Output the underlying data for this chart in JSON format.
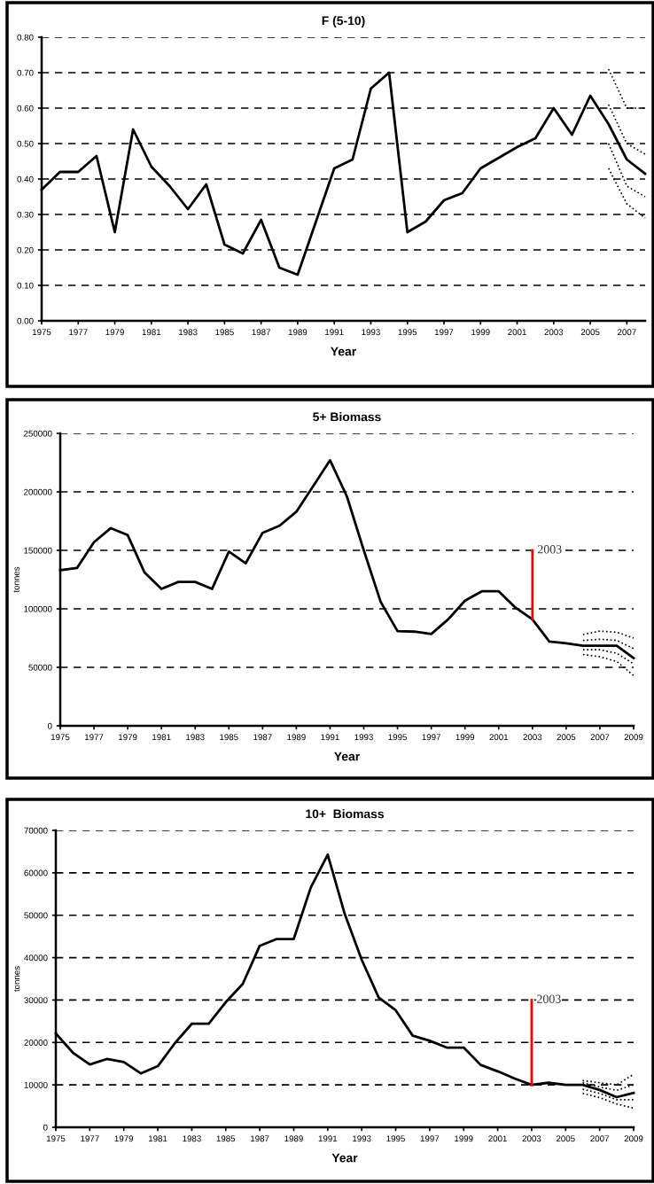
{
  "chart_data": [
    {
      "type": "line",
      "title": "F (5-10)",
      "xlabel": "Year",
      "grid": "y",
      "x": [
        1975,
        1976,
        1977,
        1978,
        1979,
        1980,
        1981,
        1982,
        1983,
        1984,
        1985,
        1986,
        1987,
        1988,
        1989,
        1990,
        1991,
        1992,
        1993,
        1994,
        1995,
        1996,
        1997,
        1998,
        1999,
        2000,
        2001,
        2002,
        2003,
        2004,
        2005,
        2006,
        2007,
        2008
      ],
      "xlim": [
        1975,
        2008
      ],
      "xticks": [
        1975,
        1977,
        1979,
        1981,
        1983,
        1985,
        1987,
        1989,
        1991,
        1993,
        1995,
        1997,
        1999,
        2001,
        2003,
        2005,
        2007
      ],
      "ylim": [
        0,
        0.8
      ],
      "yticks": [
        {
          "value": 0,
          "label": "0.00"
        },
        {
          "value": 0.1,
          "label": "0.10"
        },
        {
          "value": 0.2,
          "label": "0.20"
        },
        {
          "value": 0.3,
          "label": "0.30"
        },
        {
          "value": 0.4,
          "label": "0.40"
        },
        {
          "value": 0.5,
          "label": "0.50"
        },
        {
          "value": 0.6,
          "label": "0.60"
        },
        {
          "value": 0.7,
          "label": "0.70"
        },
        {
          "value": 0.8,
          "label": "0.80"
        }
      ],
      "series": [
        {
          "color": "#000000",
          "line_style": "solid",
          "values": [
            0.37,
            0.42,
            0.42,
            0.465,
            0.25,
            0.54,
            0.435,
            0.38,
            0.315,
            0.385,
            0.215,
            0.19,
            0.285,
            0.15,
            0.13,
            0.28,
            0.43,
            0.455,
            0.655,
            0.7,
            0.25,
            0.28,
            0.34,
            0.36,
            0.43,
            0.46,
            0.49,
            0.515,
            0.6,
            0.525,
            0.635,
            0.555,
            0.455,
            0.415
          ]
        },
        {
          "color": "#000000",
          "line_style": "dotted",
          "x": [
            2006,
            2007,
            2008
          ],
          "values": [
            0.71,
            0.6,
            0.6
          ]
        },
        {
          "color": "#000000",
          "line_style": "dotted",
          "x": [
            2006,
            2007,
            2008
          ],
          "values": [
            0.61,
            0.5,
            0.47
          ]
        },
        {
          "color": "#000000",
          "line_style": "dotted",
          "x": [
            2006,
            2007,
            2008
          ],
          "values": [
            0.5,
            0.38,
            0.35
          ]
        },
        {
          "color": "#000000",
          "line_style": "dotted",
          "x": [
            2006,
            2007,
            2008
          ],
          "values": [
            0.43,
            0.33,
            0.29
          ]
        }
      ]
    },
    {
      "type": "line",
      "title": "5+ Biomass",
      "xlabel": "Year",
      "ylabel": "tonnes",
      "grid": "y",
      "x": [
        1975,
        1976,
        1977,
        1978,
        1979,
        1980,
        1981,
        1982,
        1983,
        1984,
        1985,
        1986,
        1987,
        1988,
        1989,
        1990,
        1991,
        1992,
        1993,
        1994,
        1995,
        1996,
        1997,
        1998,
        1999,
        2000,
        2001,
        2002,
        2003,
        2004,
        2005,
        2006,
        2007,
        2008,
        2009
      ],
      "xlim": [
        1975,
        2009
      ],
      "xticks": [
        1975,
        1977,
        1979,
        1981,
        1983,
        1985,
        1987,
        1989,
        1991,
        1993,
        1995,
        1997,
        1999,
        2001,
        2003,
        2005,
        2007,
        2009
      ],
      "ylim": [
        0,
        250000
      ],
      "yticks": [
        0,
        50000,
        100000,
        150000,
        200000,
        250000
      ],
      "series": [
        {
          "color": "#000000",
          "line_style": "solid",
          "values": [
            133000,
            135000,
            157000,
            169000,
            163000,
            131000,
            117000,
            123000,
            123000,
            117000,
            149000,
            139000,
            165000,
            171000,
            183000,
            205000,
            227000,
            196000,
            150000,
            106000,
            81000,
            80500,
            78500,
            91000,
            107000,
            115000,
            115000,
            101000,
            91000,
            72000,
            70500,
            68500,
            68500,
            68500,
            58000
          ]
        },
        {
          "color": "#000000",
          "line_style": "dotted",
          "x": [
            2006,
            2007,
            2008,
            2009
          ],
          "values": [
            78000,
            81000,
            80000,
            75000
          ]
        },
        {
          "color": "#000000",
          "line_style": "dotted",
          "x": [
            2006,
            2007,
            2008,
            2009
          ],
          "values": [
            73000,
            74000,
            73000,
            66000
          ]
        },
        {
          "color": "#000000",
          "line_style": "dotted",
          "x": [
            2006,
            2007,
            2008,
            2009
          ],
          "values": [
            65000,
            65000,
            62000,
            53000
          ]
        },
        {
          "color": "#000000",
          "line_style": "dotted",
          "x": [
            2006,
            2007,
            2008,
            2009
          ],
          "values": [
            61000,
            59000,
            55000,
            43000
          ]
        },
        {
          "color": "#ff0000",
          "line_style": "solid",
          "x": [
            2003,
            2003
          ],
          "values": [
            91000,
            150000
          ]
        }
      ],
      "annotations": [
        {
          "text": "2003",
          "x": 2003,
          "y": 150000
        }
      ]
    },
    {
      "type": "line",
      "title": "10+  Biomass",
      "xlabel": "Year",
      "ylabel": "tonnes",
      "grid": "y",
      "x": [
        1975,
        1976,
        1977,
        1978,
        1979,
        1980,
        1981,
        1982,
        1983,
        1984,
        1985,
        1986,
        1987,
        1988,
        1989,
        1990,
        1991,
        1992,
        1993,
        1994,
        1995,
        1996,
        1997,
        1998,
        1999,
        2000,
        2001,
        2002,
        2003,
        2004,
        2005,
        2006,
        2007,
        2008,
        2009
      ],
      "xlim": [
        1975,
        2009
      ],
      "xticks": [
        1975,
        1977,
        1979,
        1981,
        1983,
        1985,
        1987,
        1989,
        1991,
        1993,
        1995,
        1997,
        1999,
        2001,
        2003,
        2005,
        2007,
        2009
      ],
      "ylim": [
        0,
        70000
      ],
      "yticks": [
        0,
        10000,
        20000,
        30000,
        40000,
        50000,
        60000,
        70000
      ],
      "series": [
        {
          "color": "#000000",
          "line_style": "solid",
          "values": [
            22100,
            17600,
            14800,
            16100,
            15400,
            12700,
            14400,
            19800,
            24400,
            24400,
            29500,
            33800,
            42800,
            44400,
            44400,
            56500,
            64300,
            50300,
            39500,
            30600,
            27600,
            21600,
            20400,
            18800,
            18800,
            14700,
            13200,
            11500,
            10000,
            10500,
            10000,
            10000,
            8800,
            7100,
            8100
          ]
        },
        {
          "color": "#000000",
          "line_style": "dotted",
          "x": [
            2006,
            2007,
            2008,
            2009
          ],
          "values": [
            11000,
            10500,
            10000,
            12500
          ]
        },
        {
          "color": "#000000",
          "line_style": "dotted",
          "x": [
            2006,
            2007,
            2008,
            2009
          ],
          "values": [
            10500,
            9500,
            8700,
            10000
          ]
        },
        {
          "color": "#000000",
          "line_style": "dotted",
          "x": [
            2006,
            2007,
            2008,
            2009
          ],
          "values": [
            9000,
            8000,
            6500,
            6500
          ]
        },
        {
          "color": "#000000",
          "line_style": "dotted",
          "x": [
            2006,
            2007,
            2008,
            2009
          ],
          "values": [
            8000,
            7000,
            5500,
            4500
          ]
        },
        {
          "color": "#ff0000",
          "line_style": "solid",
          "x": [
            2003,
            2003
          ],
          "values": [
            10000,
            30000
          ]
        }
      ],
      "annotations": [
        {
          "text": "2003",
          "x": 2003,
          "y": 30000
        }
      ]
    }
  ]
}
